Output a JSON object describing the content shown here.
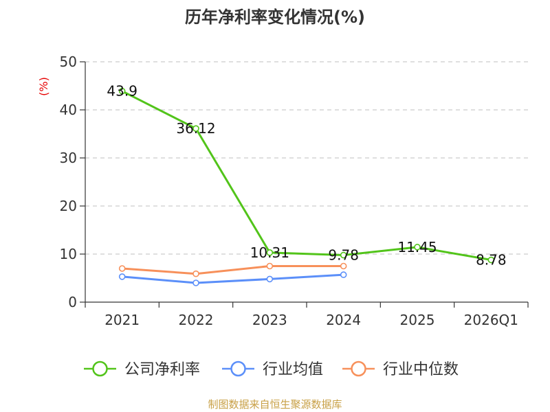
{
  "chart_data": {
    "type": "line",
    "title": "历年净利率变化情况(%)",
    "ylabel": "(%)",
    "ylim": [
      0,
      50
    ],
    "yticks": [
      "0",
      "10",
      "20",
      "30",
      "40",
      "50"
    ],
    "categories": [
      "2021",
      "2022",
      "2023",
      "2024",
      "2025",
      "2026Q1"
    ],
    "grid": "horizontal dashed",
    "legend_position": "bottom",
    "series": [
      {
        "name": "公司净利率",
        "color": "#52c41a",
        "values": [
          43.9,
          36.12,
          10.31,
          9.78,
          11.45,
          8.78
        ],
        "labels": [
          "43.9",
          "36.12",
          "10.31",
          "9.78",
          "11.45",
          "8.78"
        ]
      },
      {
        "name": "行业均值",
        "color": "#5b8ff9",
        "values": [
          5.3,
          4.0,
          4.8,
          5.7,
          null,
          null
        ]
      },
      {
        "name": "行业中位数",
        "color": "#f7905a",
        "values": [
          7.0,
          5.9,
          7.5,
          7.5,
          null,
          null
        ]
      }
    ]
  },
  "footer": {
    "source": "制图数据来自恒生聚源数据库"
  }
}
